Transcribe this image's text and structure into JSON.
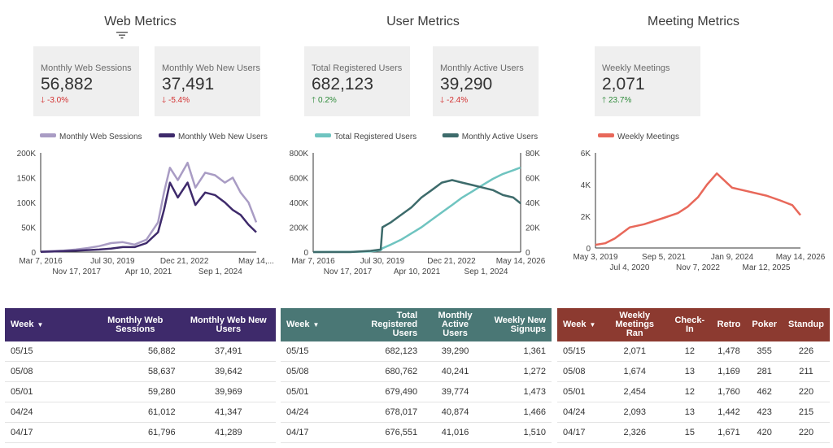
{
  "sections": {
    "web": {
      "title": "Web Metrics"
    },
    "user": {
      "title": "User Metrics"
    },
    "meeting": {
      "title": "Meeting Metrics"
    }
  },
  "icons": {
    "filter": "filter-icon",
    "down": "down-arrow-icon",
    "up": "up-arrow-icon",
    "sort": "sort-caret-icon"
  },
  "colors": {
    "negative": "#d32f2f",
    "positive": "#2e8b3a",
    "web_header": "#3e2a6b",
    "user_header": "#4a7775",
    "meeting_header": "#8c3a30"
  },
  "scorecards": {
    "web_sessions": {
      "label": "Monthly Web Sessions",
      "value": "56,882",
      "change": "-3.0%"
    },
    "web_new_users": {
      "label": "Monthly Web New Users",
      "value": "37,491",
      "change": "-5.4%"
    },
    "registered": {
      "label": "Total Registered Users",
      "value": "682,123",
      "change": "0.2%"
    },
    "active": {
      "label": "Monthly Active Users",
      "value": "39,290",
      "change": "-2.4%"
    },
    "meetings": {
      "label": "Weekly Meetings",
      "value": "2,071",
      "change": "23.7%"
    }
  },
  "chart_data": [
    {
      "type": "line",
      "x": [
        "2016-03-07",
        "2016-09-01",
        "2017-03-01",
        "2017-09-01",
        "2018-03-01",
        "2018-09-01",
        "2019-03-01",
        "2019-09-01",
        "2020-03-01",
        "2020-09-01",
        "2021-03-01",
        "2021-06-01",
        "2021-09-01",
        "2022-01-01",
        "2022-06-01",
        "2022-10-01",
        "2023-03-01",
        "2023-08-01",
        "2024-01-01",
        "2024-05-01",
        "2024-09-01",
        "2025-01-01",
        "2025-05-01"
      ],
      "series": [
        {
          "name": "Monthly Web Sessions",
          "color": "#a99cc4",
          "values": [
            1000,
            2000,
            3000,
            5000,
            8000,
            12000,
            18000,
            20000,
            15000,
            25000,
            60000,
            120000,
            170000,
            145000,
            180000,
            130000,
            160000,
            155000,
            140000,
            150000,
            120000,
            100000,
            60000
          ]
        },
        {
          "name": "Monthly Web New Users",
          "color": "#3e2a6b",
          "values": [
            500,
            1000,
            2000,
            3000,
            4000,
            5000,
            7000,
            10000,
            10000,
            18000,
            40000,
            85000,
            140000,
            110000,
            140000,
            95000,
            120000,
            115000,
            100000,
            85000,
            75000,
            55000,
            40000
          ]
        }
      ],
      "xticks_row1": [
        "Mar 7, 2016",
        "Jul 30, 2019",
        "Dec 21, 2022",
        "May 14,..."
      ],
      "xticks_row2": [
        "Nov 17, 2017",
        "Apr 10, 2021",
        "Sep 1, 2024"
      ],
      "yticks": [
        "0",
        "50K",
        "100K",
        "150K",
        "200K"
      ],
      "ylim": [
        0,
        200000
      ]
    },
    {
      "type": "line",
      "x": [
        "2016-03-07",
        "2017-01-01",
        "2018-01-01",
        "2019-01-01",
        "2019-07-01",
        "2019-08-01",
        "2020-01-01",
        "2020-07-01",
        "2021-01-01",
        "2021-07-01",
        "2022-01-01",
        "2022-07-01",
        "2023-01-01",
        "2023-07-01",
        "2024-01-01",
        "2024-07-01",
        "2025-01-01",
        "2025-07-01",
        "2026-01-01",
        "2026-05-14"
      ],
      "series": [
        {
          "name": "Total Registered Users",
          "color": "#6fc4c0",
          "axis": "left",
          "values": [
            0,
            1000,
            2000,
            5000,
            15000,
            30000,
            60000,
            100000,
            150000,
            200000,
            260000,
            320000,
            380000,
            440000,
            490000,
            540000,
            590000,
            630000,
            660000,
            682123
          ]
        },
        {
          "name": "Monthly Active Users",
          "color": "#3d6b6b",
          "axis": "right",
          "values": [
            0,
            0,
            0,
            1000,
            2000,
            20000,
            24000,
            30000,
            36000,
            44000,
            50000,
            56000,
            58000,
            56000,
            54000,
            52000,
            50000,
            46000,
            44000,
            39290
          ]
        }
      ],
      "xticks_row1": [
        "Mar 7, 2016",
        "Jul 30, 2019",
        "Dec 21, 2022",
        "May 14, 2026"
      ],
      "xticks_row2": [
        "Nov 17, 2017",
        "Apr 10, 2021",
        "Sep 1, 2024"
      ],
      "yticks_left": [
        "0",
        "200K",
        "400K",
        "600K",
        "800K"
      ],
      "yticks_right": [
        "0",
        "20K",
        "40K",
        "60K",
        "80K"
      ],
      "ylim_left": [
        0,
        800000
      ],
      "ylim_right": [
        0,
        80000
      ]
    },
    {
      "type": "line",
      "x": [
        "2019-05-03",
        "2019-09-01",
        "2020-01-01",
        "2020-07-04",
        "2021-01-01",
        "2021-09-05",
        "2022-03-01",
        "2022-07-01",
        "2022-11-07",
        "2023-03-01",
        "2023-07-01",
        "2024-01-09",
        "2024-07-01",
        "2025-03-12",
        "2025-09-01",
        "2026-02-01",
        "2026-05-14"
      ],
      "series": [
        {
          "name": "Weekly Meetings",
          "color": "#e8685a",
          "values": [
            200,
            300,
            600,
            1300,
            1500,
            1900,
            2200,
            2600,
            3200,
            4000,
            4700,
            3800,
            3600,
            3300,
            3000,
            2700,
            2071
          ]
        }
      ],
      "xticks_row1": [
        "May 3, 2019",
        "Sep 5, 2021",
        "Jan 9, 2024",
        "May 14, 2026"
      ],
      "xticks_row2": [
        "Jul 4, 2020",
        "Nov 7, 2022",
        "Mar 12, 2025"
      ],
      "yticks": [
        "0",
        "2K",
        "4K",
        "6K"
      ],
      "ylim": [
        0,
        6000
      ]
    }
  ],
  "tables": {
    "web": {
      "headers": [
        "Week",
        "Monthly Web Sessions",
        "Monthly Web New Users"
      ],
      "rows": [
        [
          "05/15",
          "56,882",
          "37,491"
        ],
        [
          "05/08",
          "58,637",
          "39,642"
        ],
        [
          "05/01",
          "59,280",
          "39,969"
        ],
        [
          "04/24",
          "61,012",
          "41,347"
        ],
        [
          "04/17",
          "61,796",
          "41,289"
        ]
      ]
    },
    "user": {
      "headers": [
        "Week",
        "Total Registered Users",
        "Monthly Active Users",
        "Weekly New Signups"
      ],
      "rows": [
        [
          "05/15",
          "682,123",
          "39,290",
          "1,361"
        ],
        [
          "05/08",
          "680,762",
          "40,241",
          "1,272"
        ],
        [
          "05/01",
          "679,490",
          "39,774",
          "1,473"
        ],
        [
          "04/24",
          "678,017",
          "40,874",
          "1,466"
        ],
        [
          "04/17",
          "676,551",
          "41,016",
          "1,510"
        ]
      ]
    },
    "meeting": {
      "headers": [
        "Week",
        "Weekly Meetings Ran",
        "Check-In",
        "Retro",
        "Poker",
        "Standup"
      ],
      "rows": [
        [
          "05/15",
          "2,071",
          "12",
          "1,478",
          "355",
          "226"
        ],
        [
          "05/08",
          "1,674",
          "13",
          "1,169",
          "281",
          "211"
        ],
        [
          "05/01",
          "2,454",
          "12",
          "1,760",
          "462",
          "220"
        ],
        [
          "04/24",
          "2,093",
          "13",
          "1,442",
          "423",
          "215"
        ],
        [
          "04/17",
          "2,326",
          "15",
          "1,671",
          "420",
          "220"
        ]
      ]
    }
  }
}
